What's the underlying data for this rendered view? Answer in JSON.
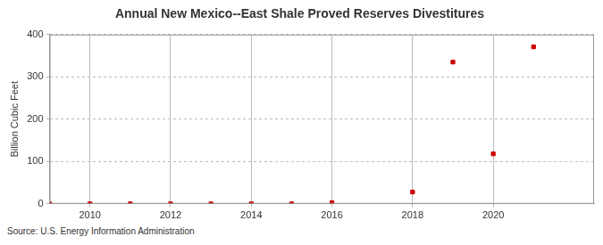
{
  "chart_data": {
    "type": "scatter",
    "title": "Annual New Mexico--East Shale Proved Reserves Divestitures",
    "y_label": "Billion Cubic Feet",
    "source": "Source: U.S. Energy Information Administration",
    "x": [
      2009,
      2010,
      2011,
      2012,
      2013,
      2014,
      2015,
      2016,
      2018,
      2019,
      2020,
      2021
    ],
    "values": [
      0,
      0,
      0,
      0,
      0,
      0,
      0,
      3,
      28,
      335,
      118,
      371
    ],
    "color": "#cc0000",
    "marker": "square",
    "xlim": [
      2009,
      2022.5
    ],
    "xticks": [
      2010,
      2012,
      2014,
      2016,
      2018,
      2020
    ],
    "ylim": [
      0,
      400
    ],
    "yticks": [
      0,
      100,
      200,
      300,
      400
    ],
    "grid": true
  }
}
